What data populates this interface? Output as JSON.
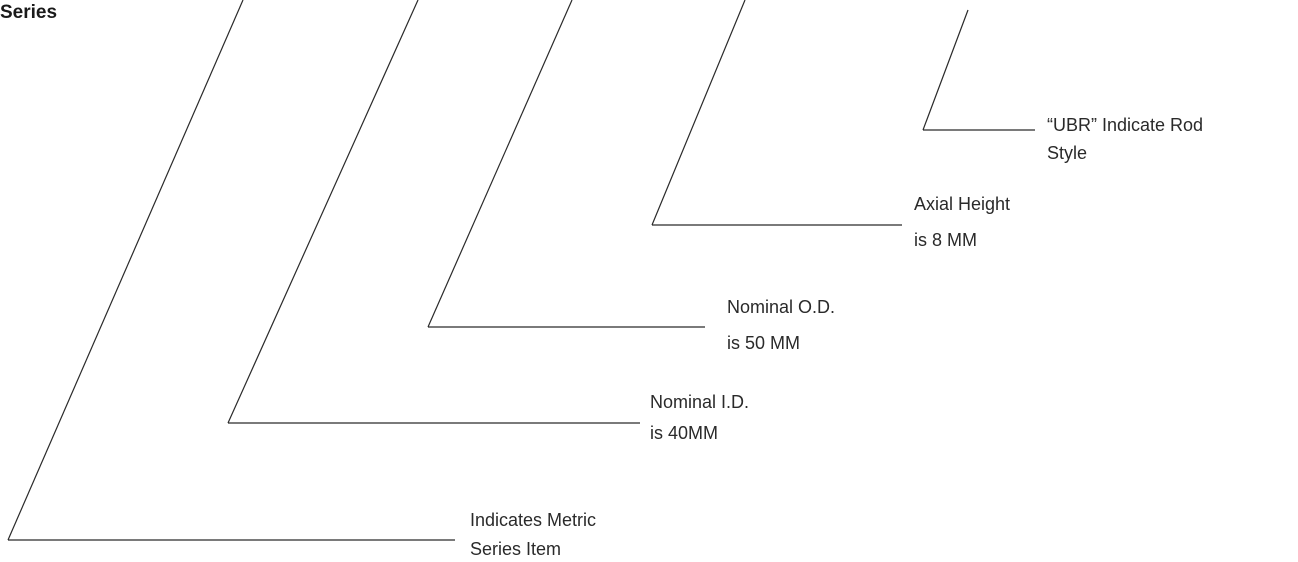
{
  "heading": "Series",
  "callouts": [
    {
      "line1": "“UBR” Indicate Rod",
      "line2": "Style"
    },
    {
      "line1": "Axial Height",
      "line2": "is 8 MM"
    },
    {
      "line1": "Nominal O.D.",
      "line2": "is 50 MM"
    },
    {
      "line1": "Nominal I.D.",
      "line2": "is 40MM"
    },
    {
      "line1": "Indicates Metric",
      "line2": "Series Item"
    }
  ]
}
